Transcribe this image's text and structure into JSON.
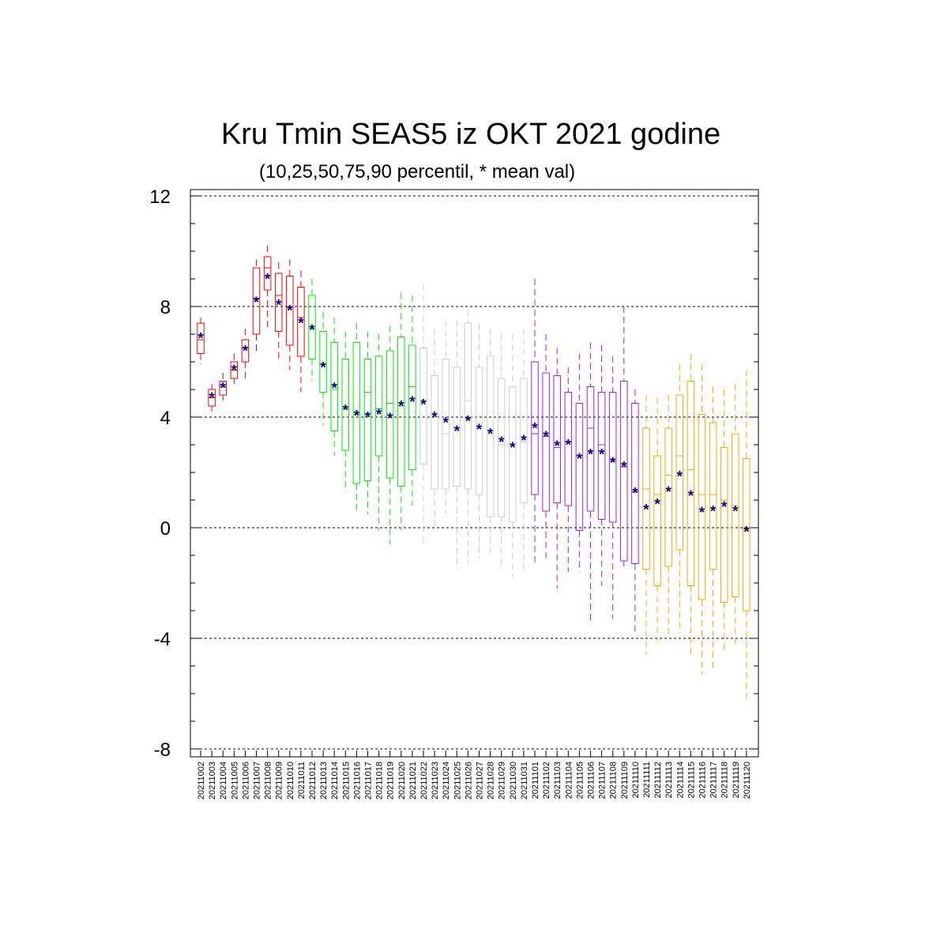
{
  "chart_data": {
    "type": "box",
    "title": "Kru Tmin SEAS5 iz OKT 2021 godine",
    "subtitle": "(10,25,50,75,90 percentil, * mean val)",
    "ylim": [
      -8,
      12
    ],
    "yticks": [
      12,
      8,
      4,
      0,
      -4,
      -8
    ],
    "grid": "horizontal dashed at major ticks",
    "mean_marker": "*",
    "colors": {
      "red": "#ff0000",
      "green": "#00ee00",
      "gray": "#cccccc",
      "purple": "#a020f0",
      "orange": "#ffa500",
      "mean": "#000080"
    },
    "boxes": [
      {
        "date": "20211002",
        "color": "red",
        "p10": 5.9,
        "p25": 6.3,
        "p50": 6.8,
        "p75": 7.4,
        "p90": 7.6,
        "mean": 6.9
      },
      {
        "date": "20211003",
        "color": "red",
        "p10": 4.2,
        "p25": 4.4,
        "p50": 4.7,
        "p75": 5.0,
        "p90": 5.2,
        "mean": 4.75
      },
      {
        "date": "20211004",
        "color": "red",
        "p10": 4.6,
        "p25": 4.8,
        "p50": 5.1,
        "p75": 5.3,
        "p90": 5.6,
        "mean": 5.1
      },
      {
        "date": "20211005",
        "color": "red",
        "p10": 5.2,
        "p25": 5.4,
        "p50": 5.7,
        "p75": 6.0,
        "p90": 6.3,
        "mean": 5.75
      },
      {
        "date": "20211006",
        "color": "red",
        "p10": 5.3,
        "p25": 6.0,
        "p50": 6.5,
        "p75": 6.8,
        "p90": 7.2,
        "mean": 6.45
      },
      {
        "date": "20211007",
        "color": "red",
        "p10": 6.4,
        "p25": 7.0,
        "p50": 8.3,
        "p75": 9.4,
        "p90": 9.7,
        "mean": 8.2
      },
      {
        "date": "20211008",
        "color": "red",
        "p10": 7.2,
        "p25": 8.6,
        "p50": 9.4,
        "p75": 9.8,
        "p90": 10.2,
        "mean": 9.05
      },
      {
        "date": "20211009",
        "color": "red",
        "p10": 6.0,
        "p25": 7.1,
        "p50": 8.4,
        "p75": 9.2,
        "p90": 9.6,
        "mean": 8.1
      },
      {
        "date": "20211010",
        "color": "red",
        "p10": 5.7,
        "p25": 6.6,
        "p50": 8.0,
        "p75": 9.1,
        "p90": 9.7,
        "mean": 7.9
      },
      {
        "date": "20211011",
        "color": "red",
        "p10": 4.9,
        "p25": 6.2,
        "p50": 7.6,
        "p75": 8.7,
        "p90": 9.3,
        "mean": 7.45
      },
      {
        "date": "20211012",
        "color": "green",
        "p10": 5.3,
        "p25": 6.1,
        "p50": 7.2,
        "p75": 8.4,
        "p90": 9.0,
        "mean": 7.2
      },
      {
        "date": "20211013",
        "color": "green",
        "p10": 3.7,
        "p25": 4.9,
        "p50": 5.9,
        "p75": 7.1,
        "p90": 7.8,
        "mean": 5.85
      },
      {
        "date": "20211014",
        "color": "green",
        "p10": 2.6,
        "p25": 3.5,
        "p50": 5.0,
        "p75": 6.7,
        "p90": 7.6,
        "mean": 5.1
      },
      {
        "date": "20211015",
        "color": "green",
        "p10": 1.3,
        "p25": 2.8,
        "p50": 4.3,
        "p75": 6.1,
        "p90": 7.1,
        "mean": 4.3
      },
      {
        "date": "20211016",
        "color": "green",
        "p10": 0.6,
        "p25": 1.6,
        "p50": 4.1,
        "p75": 6.7,
        "p90": 7.4,
        "mean": 4.1
      },
      {
        "date": "20211017",
        "color": "green",
        "p10": 0.5,
        "p25": 1.7,
        "p50": 4.9,
        "p75": 6.1,
        "p90": 7.1,
        "mean": 4.05
      },
      {
        "date": "20211018",
        "color": "green",
        "p10": -0.1,
        "p25": 2.6,
        "p50": 4.3,
        "p75": 6.2,
        "p90": 7.0,
        "mean": 4.15
      },
      {
        "date": "20211019",
        "color": "green",
        "p10": -0.6,
        "p25": 1.8,
        "p50": 4.5,
        "p75": 6.4,
        "p90": 7.3,
        "mean": 4.0
      },
      {
        "date": "20211020",
        "color": "green",
        "p10": -0.1,
        "p25": 1.5,
        "p50": 4.4,
        "p75": 6.9,
        "p90": 8.5,
        "mean": 4.45
      },
      {
        "date": "20211021",
        "color": "green",
        "p10": 0.8,
        "p25": 2.1,
        "p50": 5.1,
        "p75": 6.6,
        "p90": 8.4,
        "mean": 4.6
      },
      {
        "date": "20211022",
        "color": "gray",
        "p10": -0.6,
        "p25": 2.3,
        "p50": 4.6,
        "p75": 6.5,
        "p90": 8.8,
        "mean": 4.5
      },
      {
        "date": "20211023",
        "color": "gray",
        "p10": 0.0,
        "p25": 1.4,
        "p50": 4.2,
        "p75": 5.5,
        "p90": 7.2,
        "mean": 4.05
      },
      {
        "date": "20211024",
        "color": "gray",
        "p10": 0.5,
        "p25": 1.4,
        "p50": 3.4,
        "p75": 6.1,
        "p90": 7.5,
        "mean": 3.85
      },
      {
        "date": "20211025",
        "color": "gray",
        "p10": -1.5,
        "p25": 1.5,
        "p50": 3.5,
        "p75": 5.8,
        "p90": 7.5,
        "mean": 3.55
      },
      {
        "date": "20211026",
        "color": "gray",
        "p10": -1.3,
        "p25": 1.4,
        "p50": 4.6,
        "p75": 7.4,
        "p90": 7.9,
        "mean": 3.9
      },
      {
        "date": "20211027",
        "color": "gray",
        "p10": -1.1,
        "p25": 1.2,
        "p50": 3.8,
        "p75": 5.8,
        "p90": 7.4,
        "mean": 3.6
      },
      {
        "date": "20211028",
        "color": "gray",
        "p10": -0.9,
        "p25": 0.4,
        "p50": 3.4,
        "p75": 6.2,
        "p90": 7.2,
        "mean": 3.45
      },
      {
        "date": "20211029",
        "color": "gray",
        "p10": -1.5,
        "p25": 0.4,
        "p50": 3.0,
        "p75": 5.4,
        "p90": 7.0,
        "mean": 3.15
      },
      {
        "date": "20211030",
        "color": "gray",
        "p10": -1.8,
        "p25": 0.2,
        "p50": 3.0,
        "p75": 5.1,
        "p90": 7.0,
        "mean": 2.95
      },
      {
        "date": "20211031",
        "color": "gray",
        "p10": -1.7,
        "p25": 0.9,
        "p50": 3.1,
        "p75": 5.4,
        "p90": 7.2,
        "mean": 3.2
      },
      {
        "date": "20211101",
        "color": "purple",
        "p10": -1.3,
        "p25": 1.2,
        "p50": 3.4,
        "p75": 6.0,
        "p90": 9.0,
        "mean": 3.65
      },
      {
        "date": "20211102",
        "color": "purple",
        "p10": -1.1,
        "p25": 0.6,
        "p50": 3.3,
        "p75": 5.6,
        "p90": 7.0,
        "mean": 3.35
      },
      {
        "date": "20211103",
        "color": "purple",
        "p10": -2.2,
        "p25": 0.9,
        "p50": 2.9,
        "p75": 5.5,
        "p90": 6.5,
        "mean": 3.0
      },
      {
        "date": "20211104",
        "color": "purple",
        "p10": -1.6,
        "p25": 0.8,
        "p50": 3.1,
        "p75": 4.9,
        "p90": 5.8,
        "mean": 3.05
      },
      {
        "date": "20211105",
        "color": "purple",
        "p10": -1.6,
        "p25": -0.1,
        "p50": 2.6,
        "p75": 4.5,
        "p90": 6.3,
        "mean": 2.55
      },
      {
        "date": "20211106",
        "color": "purple",
        "p10": -3.4,
        "p25": 0.6,
        "p50": 3.6,
        "p75": 5.1,
        "p90": 6.7,
        "mean": 2.7
      },
      {
        "date": "20211107",
        "color": "purple",
        "p10": -2.1,
        "p25": 0.3,
        "p50": 3.0,
        "p75": 4.9,
        "p90": 6.6,
        "mean": 2.7
      },
      {
        "date": "20211108",
        "color": "purple",
        "p10": -3.3,
        "p25": 0.2,
        "p50": 2.4,
        "p75": 4.9,
        "p90": 6.2,
        "mean": 2.4
      },
      {
        "date": "20211109",
        "color": "purple",
        "p10": -1.4,
        "p25": -1.2,
        "p50": 2.2,
        "p75": 5.3,
        "p90": 8.0,
        "mean": 2.25
      },
      {
        "date": "20211110",
        "color": "purple",
        "p10": -3.8,
        "p25": -1.3,
        "p50": 1.3,
        "p75": 4.5,
        "p90": 5.0,
        "mean": 1.3
      },
      {
        "date": "20211111",
        "color": "orange",
        "p10": -4.6,
        "p25": -1.5,
        "p50": 1.4,
        "p75": 3.6,
        "p90": 4.8,
        "mean": 0.7
      },
      {
        "date": "20211112",
        "color": "orange",
        "p10": -4.1,
        "p25": -2.1,
        "p50": 1.2,
        "p75": 2.6,
        "p90": 4.7,
        "mean": 0.9
      },
      {
        "date": "20211113",
        "color": "orange",
        "p10": -4.0,
        "p25": -1.4,
        "p50": 1.9,
        "p75": 3.6,
        "p90": 4.8,
        "mean": 1.35
      },
      {
        "date": "20211114",
        "color": "orange",
        "p10": -3.8,
        "p25": -0.8,
        "p50": 2.6,
        "p75": 4.8,
        "p90": 5.9,
        "mean": 1.9
      },
      {
        "date": "20211115",
        "color": "orange",
        "p10": -4.6,
        "p25": -2.1,
        "p50": 2.1,
        "p75": 5.3,
        "p90": 6.3,
        "mean": 1.2
      },
      {
        "date": "20211116",
        "color": "orange",
        "p10": -5.3,
        "p25": -2.6,
        "p50": 1.2,
        "p75": 4.1,
        "p90": 5.9,
        "mean": 0.6
      },
      {
        "date": "20211117",
        "color": "orange",
        "p10": -5.2,
        "p25": -1.5,
        "p50": 1.2,
        "p75": 3.8,
        "p90": 5.1,
        "mean": 0.65
      },
      {
        "date": "20211118",
        "color": "orange",
        "p10": -4.5,
        "p25": -2.7,
        "p50": 1.0,
        "p75": 2.9,
        "p90": 5.0,
        "mean": 0.8
      },
      {
        "date": "20211119",
        "color": "orange",
        "p10": -4.3,
        "p25": -2.5,
        "p50": 0.8,
        "p75": 3.4,
        "p90": 5.2,
        "mean": 0.65
      },
      {
        "date": "20211120",
        "color": "orange",
        "p10": -6.3,
        "p25": -3.0,
        "p50": -0.1,
        "p75": 2.5,
        "p90": 5.7,
        "mean": -0.1
      }
    ]
  }
}
